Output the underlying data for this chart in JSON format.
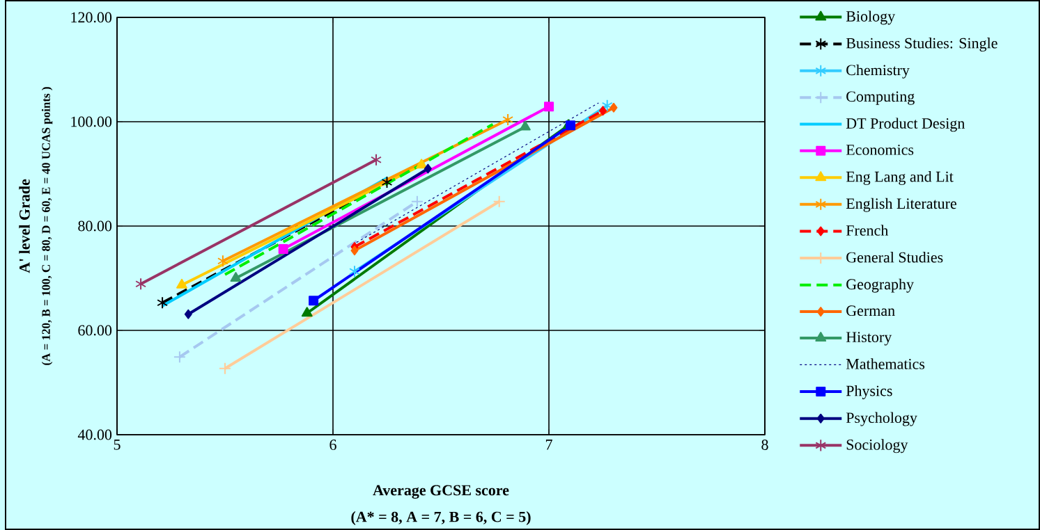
{
  "chart_data": {
    "type": "line",
    "xlabel": "Average GCSE score",
    "ylabel": "A' level Grade",
    "annotations": [
      "(A* = 8, A = 7, B = 6, C = 5)",
      "(A = 120, B = 100, C = 80, D = 60, E = 40 UCAS points )"
    ],
    "xlim": [
      5,
      8
    ],
    "xticks": [
      5,
      6,
      7,
      8
    ],
    "ylim": [
      40,
      120
    ],
    "yticks": [
      {
        "value": 40,
        "label": "40.00"
      },
      {
        "value": 60,
        "label": "60.00"
      },
      {
        "value": 80,
        "label": "80.00"
      },
      {
        "value": 100,
        "label": "100.00"
      },
      {
        "value": 120,
        "label": "120.00"
      }
    ],
    "grid": true,
    "legend": "right",
    "series": [
      {
        "name": "Biology",
        "color": "#007a00",
        "marker": "triangle",
        "x": [
          5.88,
          7.09
        ],
        "values": [
          63.3,
          99.3
        ]
      },
      {
        "name": "Business  Studies: Single",
        "color": "#000000",
        "marker": "cross",
        "line_style": "dashed",
        "x": [
          5.21,
          6.25
        ],
        "values": [
          65.3,
          88.4
        ]
      },
      {
        "name": "Chemistry",
        "color": "#33ccff",
        "marker": "cross",
        "x": [
          6.1,
          7.27
        ],
        "values": [
          71.3,
          103.1
        ]
      },
      {
        "name": "Computing",
        "color": "#a6c8f0",
        "marker": "plus",
        "line_style": "dashed",
        "x": [
          5.29,
          6.39
        ],
        "values": [
          54.9,
          84.7
        ]
      },
      {
        "name": "DT Product Design",
        "color": "#00ccff",
        "marker": "none",
        "x": [
          5.21,
          6.25
        ],
        "values": [
          64.7,
          89.2
        ]
      },
      {
        "name": "Economics",
        "color": "#ff00ff",
        "marker": "square",
        "x": [
          5.77,
          7.0
        ],
        "values": [
          75.6,
          102.9
        ]
      },
      {
        "name": "Eng Lang and Lit",
        "color": "#ffcc00",
        "marker": "triangle",
        "x": [
          5.3,
          6.41
        ],
        "values": [
          68.7,
          91.7
        ]
      },
      {
        "name": "English Literature",
        "color": "#ff9900",
        "marker": "cross",
        "x": [
          5.49,
          6.81
        ],
        "values": [
          73.3,
          100.4
        ]
      },
      {
        "name": "French",
        "color": "#ff0000",
        "marker": "diamond",
        "line_style": "dashed",
        "x": [
          6.1,
          7.25
        ],
        "values": [
          76.0,
          102.1
        ]
      },
      {
        "name": "General Studies",
        "color": "#ffcc99",
        "marker": "plus",
        "x": [
          5.5,
          6.77
        ],
        "values": [
          52.7,
          84.7
        ]
      },
      {
        "name": "Geography",
        "color": "#00ee00",
        "marker": "none",
        "line_style": "dashed",
        "x": [
          5.5,
          6.74
        ],
        "values": [
          70.7,
          99.5
        ]
      },
      {
        "name": "German",
        "color": "#ff6600",
        "marker": "diamond",
        "x": [
          6.1,
          7.3
        ],
        "values": [
          75.3,
          102.7
        ]
      },
      {
        "name": "History",
        "color": "#339966",
        "marker": "triangle",
        "x": [
          5.55,
          6.89
        ],
        "values": [
          70.0,
          99.0
        ]
      },
      {
        "name": "Mathematics",
        "color": "#000080",
        "marker": "none",
        "line_style": "dotted",
        "x": [
          6.09,
          7.23
        ],
        "values": [
          76.4,
          103.6
        ]
      },
      {
        "name": "Physics",
        "color": "#0000ff",
        "marker": "square",
        "x": [
          5.91,
          7.1
        ],
        "values": [
          65.7,
          99.3
        ]
      },
      {
        "name": "Psychology",
        "color": "#000080",
        "marker": "diamond",
        "x": [
          5.33,
          6.44
        ],
        "values": [
          63.1,
          91.0
        ]
      },
      {
        "name": "Sociology",
        "color": "#993366",
        "marker": "cross",
        "x": [
          5.11,
          6.2
        ],
        "values": [
          68.9,
          92.7
        ]
      }
    ]
  }
}
